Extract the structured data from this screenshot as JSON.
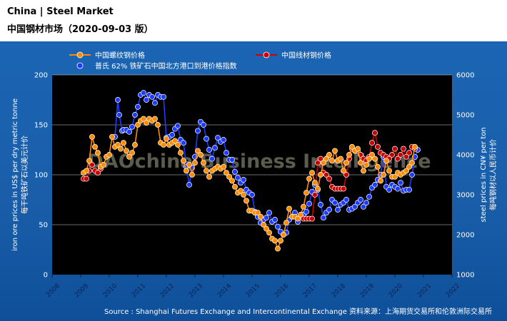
{
  "header": {
    "title_en": "China  |  Steel Market",
    "title_cn": "中国钢材市场（2020-09-03 版）"
  },
  "footer": {
    "source": "Source : Shanghai Futures Exchange and Intercontinental Exchange    资料来源：上海期货交易所和伦敦洲际交易所"
  },
  "watermark": "DAOchina Business Intelligence",
  "colors": {
    "rebar": "#ff8c00",
    "wire_rod": "#cc0000",
    "iron_ore": "#1e3cff",
    "plot_bg": "#000000",
    "panel": "#1b65b4"
  },
  "chart_data": {
    "type": "line",
    "left_axis": {
      "label_en": "iron ore prices in US$ per dry metric tonne",
      "label_cn": "每干吨铁矿石以美元计价",
      "range": [
        0,
        200
      ],
      "ticks": [
        0,
        50,
        100,
        150,
        200
      ]
    },
    "right_axis": {
      "label_en": "steel prices in CN¥ per ton",
      "label_cn": "每吨钢材以人民币计价",
      "range": [
        1000,
        6000
      ],
      "ticks": [
        1000,
        2000,
        3000,
        4000,
        5000,
        6000
      ]
    },
    "x_axis": {
      "range": [
        2008,
        2022
      ],
      "ticks": [
        "2008",
        "2009",
        "2010",
        "2011",
        "2012",
        "2013",
        "2014",
        "2015",
        "2016",
        "2017",
        "2018",
        "2019",
        "2020",
        "2021",
        "2022"
      ]
    },
    "grid": "horizontal",
    "legend_position": "top",
    "series": [
      {
        "name": "中国螺纹钢价格",
        "axis": "right",
        "color": "#ff8c00",
        "points": [
          [
            2009.1,
            3550
          ],
          [
            2009.2,
            3600
          ],
          [
            2009.3,
            3850
          ],
          [
            2009.4,
            4450
          ],
          [
            2009.5,
            4200
          ],
          [
            2009.6,
            4050
          ],
          [
            2009.7,
            3700
          ],
          [
            2009.8,
            3750
          ],
          [
            2009.9,
            3950
          ],
          [
            2010.0,
            4000
          ],
          [
            2010.1,
            4450
          ],
          [
            2010.2,
            4200
          ],
          [
            2010.3,
            4250
          ],
          [
            2010.4,
            4150
          ],
          [
            2010.5,
            4300
          ],
          [
            2010.6,
            4100
          ],
          [
            2010.7,
            3950
          ],
          [
            2010.8,
            4050
          ],
          [
            2010.9,
            4250
          ],
          [
            2011.0,
            4750
          ],
          [
            2011.1,
            4850
          ],
          [
            2011.2,
            4900
          ],
          [
            2011.3,
            4800
          ],
          [
            2011.4,
            4900
          ],
          [
            2011.5,
            4850
          ],
          [
            2011.6,
            4900
          ],
          [
            2011.7,
            4750
          ],
          [
            2011.8,
            4300
          ],
          [
            2011.9,
            4250
          ],
          [
            2012.0,
            4400
          ],
          [
            2012.1,
            4250
          ],
          [
            2012.2,
            4300
          ],
          [
            2012.3,
            4350
          ],
          [
            2012.4,
            4250
          ],
          [
            2012.5,
            4050
          ],
          [
            2012.6,
            3850
          ],
          [
            2012.7,
            3600
          ],
          [
            2012.8,
            3750
          ],
          [
            2012.9,
            3500
          ],
          [
            2013.0,
            3800
          ],
          [
            2013.1,
            4100
          ],
          [
            2013.2,
            4000
          ],
          [
            2013.3,
            3800
          ],
          [
            2013.4,
            3600
          ],
          [
            2013.5,
            3450
          ],
          [
            2013.6,
            3600
          ],
          [
            2013.7,
            3650
          ],
          [
            2013.8,
            3700
          ],
          [
            2013.9,
            3650
          ],
          [
            2014.0,
            3700
          ],
          [
            2014.1,
            3550
          ],
          [
            2014.2,
            3450
          ],
          [
            2014.3,
            3350
          ],
          [
            2014.4,
            3200
          ],
          [
            2014.5,
            3050
          ],
          [
            2014.6,
            3100
          ],
          [
            2014.7,
            3000
          ],
          [
            2014.8,
            2850
          ],
          [
            2014.9,
            2600
          ],
          [
            2015.0,
            2600
          ],
          [
            2015.1,
            2550
          ],
          [
            2015.2,
            2550
          ],
          [
            2015.3,
            2450
          ],
          [
            2015.4,
            2250
          ],
          [
            2015.5,
            2150
          ],
          [
            2015.6,
            2050
          ],
          [
            2015.7,
            1900
          ],
          [
            2015.8,
            1850
          ],
          [
            2015.9,
            1650
          ],
          [
            2016.0,
            1850
          ],
          [
            2016.1,
            2000
          ],
          [
            2016.2,
            2300
          ],
          [
            2016.3,
            2650
          ],
          [
            2016.4,
            2450
          ],
          [
            2016.5,
            2450
          ],
          [
            2016.6,
            2400
          ],
          [
            2016.7,
            2500
          ],
          [
            2016.8,
            2700
          ],
          [
            2016.9,
            3050
          ],
          [
            2017.0,
            3400
          ],
          [
            2017.1,
            3550
          ],
          [
            2017.2,
            3300
          ],
          [
            2017.3,
            3150
          ],
          [
            2017.4,
            3500
          ],
          [
            2017.5,
            3800
          ],
          [
            2017.6,
            3900
          ],
          [
            2017.7,
            4000
          ],
          [
            2017.8,
            3850
          ],
          [
            2017.9,
            4100
          ],
          [
            2018.0,
            3850
          ],
          [
            2018.1,
            3900
          ],
          [
            2018.2,
            3600
          ],
          [
            2018.3,
            3800
          ],
          [
            2018.4,
            4000
          ],
          [
            2018.5,
            4200
          ],
          [
            2018.6,
            4100
          ],
          [
            2018.7,
            4150
          ],
          [
            2018.8,
            3800
          ],
          [
            2018.9,
            3600
          ],
          [
            2019.0,
            3750
          ],
          [
            2019.1,
            3900
          ],
          [
            2019.2,
            4000
          ],
          [
            2019.3,
            3900
          ],
          [
            2019.4,
            3700
          ],
          [
            2019.5,
            3350
          ],
          [
            2019.6,
            3500
          ],
          [
            2019.7,
            3850
          ],
          [
            2019.8,
            3600
          ],
          [
            2019.9,
            3450
          ],
          [
            2020.0,
            3450
          ],
          [
            2020.1,
            3550
          ],
          [
            2020.2,
            3500
          ],
          [
            2020.3,
            3550
          ],
          [
            2020.4,
            3600
          ],
          [
            2020.5,
            3700
          ],
          [
            2020.6,
            3800
          ],
          [
            2020.7,
            4200
          ]
        ]
      },
      {
        "name": "中国线材钢价格",
        "axis": "right",
        "color": "#cc0000",
        "points": [
          [
            2009.1,
            3400
          ],
          [
            2009.2,
            3400
          ],
          [
            2009.3,
            3600
          ],
          [
            2009.4,
            3750
          ],
          [
            2009.5,
            3600
          ],
          [
            2009.6,
            3550
          ],
          [
            2009.7,
            3650
          ],
          [
            2016.8,
            2400
          ],
          [
            2016.9,
            2400
          ],
          [
            2017.0,
            2400
          ],
          [
            2017.1,
            2400
          ],
          [
            2017.2,
            3000
          ],
          [
            2017.3,
            3800
          ],
          [
            2017.4,
            3900
          ],
          [
            2017.5,
            3550
          ],
          [
            2017.6,
            3500
          ],
          [
            2017.7,
            3400
          ],
          [
            2017.8,
            3200
          ],
          [
            2017.9,
            3150
          ],
          [
            2018.0,
            3150
          ],
          [
            2018.1,
            3150
          ],
          [
            2018.2,
            3150
          ],
          [
            2018.3,
            3500
          ],
          [
            2018.4,
            3900
          ],
          [
            2018.5,
            4150
          ],
          [
            2018.6,
            4100
          ],
          [
            2018.7,
            4100
          ],
          [
            2018.8,
            4000
          ],
          [
            2018.9,
            3900
          ],
          [
            2019.0,
            3850
          ],
          [
            2019.1,
            3950
          ],
          [
            2019.2,
            4300
          ],
          [
            2019.3,
            4550
          ],
          [
            2019.4,
            4200
          ],
          [
            2019.5,
            4050
          ],
          [
            2019.6,
            4000
          ],
          [
            2019.7,
            3950
          ],
          [
            2019.8,
            3900
          ],
          [
            2019.9,
            4000
          ],
          [
            2020.0,
            4150
          ],
          [
            2020.1,
            3900
          ],
          [
            2020.2,
            4000
          ],
          [
            2020.3,
            4150
          ],
          [
            2020.4,
            3950
          ],
          [
            2020.5,
            4050
          ],
          [
            2020.6,
            4200
          ],
          [
            2020.7,
            4150
          ]
        ]
      },
      {
        "name": "普氏 62% 铁矿石中国北方港口到港价格指数",
        "axis": "left",
        "color": "#1e3cff",
        "points": [
          [
            2010.2,
            138
          ],
          [
            2010.3,
            175
          ],
          [
            2010.35,
            160
          ],
          [
            2010.45,
            144
          ],
          [
            2010.5,
            145
          ],
          [
            2010.6,
            145
          ],
          [
            2010.7,
            143
          ],
          [
            2010.8,
            148
          ],
          [
            2010.9,
            160
          ],
          [
            2011.0,
            168
          ],
          [
            2011.1,
            180
          ],
          [
            2011.2,
            182
          ],
          [
            2011.3,
            175
          ],
          [
            2011.4,
            180
          ],
          [
            2011.5,
            178
          ],
          [
            2011.6,
            172
          ],
          [
            2011.7,
            180
          ],
          [
            2011.8,
            178
          ],
          [
            2011.9,
            178
          ],
          [
            2012.0,
            137
          ],
          [
            2012.1,
            138
          ],
          [
            2012.2,
            140
          ],
          [
            2012.3,
            146
          ],
          [
            2012.4,
            149
          ],
          [
            2012.5,
            135
          ],
          [
            2012.6,
            132
          ],
          [
            2012.7,
            108
          ],
          [
            2012.8,
            90
          ],
          [
            2012.9,
            107
          ],
          [
            2013.0,
            118
          ],
          [
            2013.1,
            144
          ],
          [
            2013.2,
            153
          ],
          [
            2013.3,
            150
          ],
          [
            2013.4,
            136
          ],
          [
            2013.5,
            125
          ],
          [
            2013.6,
            116
          ],
          [
            2013.7,
            127
          ],
          [
            2013.8,
            137
          ],
          [
            2013.9,
            133
          ],
          [
            2014.0,
            135
          ],
          [
            2014.1,
            122
          ],
          [
            2014.2,
            115
          ],
          [
            2014.3,
            115
          ],
          [
            2014.4,
            103
          ],
          [
            2014.5,
            97
          ],
          [
            2014.6,
            92
          ],
          [
            2014.7,
            95
          ],
          [
            2014.8,
            85
          ],
          [
            2014.9,
            82
          ],
          [
            2015.0,
            80
          ],
          [
            2015.1,
            63
          ],
          [
            2015.2,
            58
          ],
          [
            2015.3,
            52
          ],
          [
            2015.4,
            55
          ],
          [
            2015.5,
            57
          ],
          [
            2015.6,
            62
          ],
          [
            2015.7,
            53
          ],
          [
            2015.8,
            55
          ],
          [
            2015.9,
            48
          ],
          [
            2016.0,
            43
          ],
          [
            2016.1,
            40
          ],
          [
            2016.2,
            42
          ],
          [
            2016.3,
            55
          ],
          [
            2016.4,
            58
          ],
          [
            2016.5,
            62
          ],
          [
            2016.6,
            53
          ],
          [
            2016.7,
            58
          ],
          [
            2016.8,
            60
          ],
          [
            2016.9,
            63
          ],
          [
            2017.0,
            71
          ],
          [
            2017.1,
            83
          ],
          [
            2017.2,
            90
          ],
          [
            2017.3,
            85
          ],
          [
            2017.4,
            70
          ],
          [
            2017.5,
            57
          ],
          [
            2017.6,
            62
          ],
          [
            2017.7,
            65
          ],
          [
            2017.8,
            75
          ],
          [
            2017.9,
            72
          ],
          [
            2018.0,
            65
          ],
          [
            2018.1,
            70
          ],
          [
            2018.2,
            72
          ],
          [
            2018.3,
            75
          ],
          [
            2018.4,
            65
          ],
          [
            2018.5,
            66
          ],
          [
            2018.6,
            68
          ],
          [
            2018.7,
            72
          ],
          [
            2018.8,
            75
          ],
          [
            2018.9,
            68
          ],
          [
            2019.0,
            72
          ],
          [
            2019.1,
            78
          ],
          [
            2019.2,
            87
          ],
          [
            2019.3,
            90
          ],
          [
            2019.4,
            95
          ],
          [
            2019.5,
            100
          ],
          [
            2019.6,
            118
          ],
          [
            2019.7,
            88
          ],
          [
            2019.8,
            85
          ],
          [
            2019.9,
            90
          ],
          [
            2020.0,
            88
          ],
          [
            2020.1,
            86
          ],
          [
            2020.2,
            92
          ],
          [
            2020.3,
            84
          ],
          [
            2020.4,
            85
          ],
          [
            2020.5,
            85
          ],
          [
            2020.6,
            100
          ],
          [
            2020.7,
            118
          ],
          [
            2020.8,
            125
          ]
        ]
      }
    ]
  }
}
